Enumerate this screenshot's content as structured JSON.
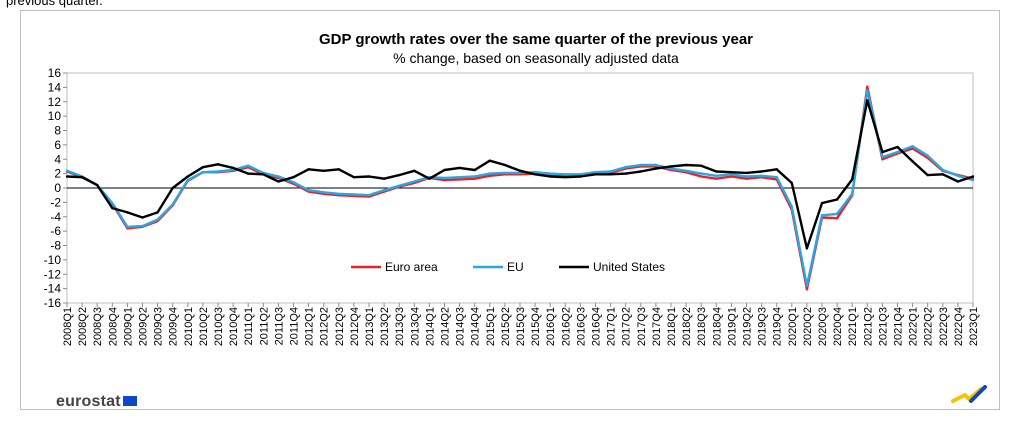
{
  "page": {
    "top_text": "previous quarter."
  },
  "branding": {
    "logo_text": "eurostat"
  },
  "colors": {
    "euro_area": "#e8212a",
    "eu": "#29a8e0",
    "united_states": "#000000",
    "flag": "#0e47cb",
    "mark_yellow": "#f5c400",
    "mark_blue": "#0e47cb"
  },
  "chart_data": {
    "type": "line",
    "title": "GDP growth rates over the same quarter of the previous year",
    "subtitle": "% change, based on seasonally adjusted data",
    "xlabel": "",
    "ylabel": "",
    "ylim": [
      -16,
      16
    ],
    "yticks": [
      16,
      14,
      12,
      10,
      8,
      6,
      4,
      2,
      0,
      -2,
      -4,
      -6,
      -8,
      -10,
      -12,
      -14,
      -16
    ],
    "grid": false,
    "legend_position": "bottom-center",
    "categories": [
      "2008Q1",
      "2008Q2",
      "2008Q3",
      "2008Q4",
      "2009Q1",
      "2009Q2",
      "2009Q3",
      "2009Q4",
      "2010Q1",
      "2010Q2",
      "2010Q3",
      "2010Q4",
      "2011Q1",
      "2011Q2",
      "2011Q3",
      "2011Q4",
      "2012Q1",
      "2012Q2",
      "2012Q3",
      "2012Q4",
      "2013Q1",
      "2013Q2",
      "2013Q3",
      "2013Q4",
      "2014Q1",
      "2014Q2",
      "2014Q3",
      "2014Q4",
      "2015Q1",
      "2015Q2",
      "2015Q3",
      "2015Q4",
      "2016Q1",
      "2016Q2",
      "2016Q3",
      "2016Q4",
      "2017Q1",
      "2017Q2",
      "2017Q3",
      "2017Q4",
      "2018Q1",
      "2018Q2",
      "2018Q3",
      "2018Q4",
      "2019Q1",
      "2019Q2",
      "2019Q3",
      "2019Q4",
      "2020Q1",
      "2020Q2",
      "2020Q3",
      "2020Q4",
      "2021Q1",
      "2021Q2",
      "2021Q3",
      "2021Q4",
      "2022Q1",
      "2022Q2",
      "2022Q3",
      "2022Q4",
      "2023Q1"
    ],
    "series": [
      {
        "name": "Euro area",
        "color": "#e8212a",
        "values": [
          2.3,
          1.5,
          0.4,
          -2.2,
          -5.6,
          -5.4,
          -4.6,
          -2.4,
          1.0,
          2.2,
          2.2,
          2.4,
          2.9,
          1.9,
          1.4,
          0.6,
          -0.5,
          -0.8,
          -1.0,
          -1.1,
          -1.2,
          -0.5,
          0.2,
          0.7,
          1.4,
          1.1,
          1.2,
          1.3,
          1.7,
          1.9,
          1.9,
          2.0,
          1.7,
          1.6,
          1.7,
          2.0,
          2.1,
          2.7,
          3.0,
          3.0,
          2.5,
          2.2,
          1.6,
          1.3,
          1.6,
          1.3,
          1.5,
          1.2,
          -3.0,
          -14.1,
          -4.1,
          -4.2,
          -1.0,
          14.1,
          4.0,
          4.8,
          5.5,
          4.2,
          2.4,
          1.8,
          1.3
        ]
      },
      {
        "name": "EU",
        "color": "#29a8e0",
        "values": [
          2.4,
          1.6,
          0.4,
          -2.1,
          -5.4,
          -5.3,
          -4.4,
          -2.3,
          1.1,
          2.2,
          2.3,
          2.5,
          3.1,
          2.1,
          1.6,
          0.8,
          -0.3,
          -0.6,
          -0.8,
          -0.9,
          -1.0,
          -0.3,
          0.3,
          0.9,
          1.5,
          1.4,
          1.5,
          1.6,
          2.0,
          2.1,
          2.1,
          2.2,
          2.0,
          1.9,
          1.9,
          2.2,
          2.3,
          2.9,
          3.2,
          3.2,
          2.7,
          2.4,
          2.0,
          1.7,
          1.9,
          1.6,
          1.7,
          1.5,
          -2.6,
          -13.6,
          -3.8,
          -3.6,
          -0.8,
          13.6,
          4.3,
          5.0,
          5.8,
          4.5,
          2.5,
          1.7,
          1.1
        ]
      },
      {
        "name": "United States",
        "color": "#000000",
        "values": [
          1.6,
          1.5,
          0.4,
          -2.8,
          -3.4,
          -4.1,
          -3.4,
          0.0,
          1.6,
          2.9,
          3.3,
          2.8,
          2.0,
          1.9,
          0.9,
          1.5,
          2.6,
          2.4,
          2.6,
          1.5,
          1.6,
          1.3,
          1.8,
          2.4,
          1.3,
          2.5,
          2.8,
          2.5,
          3.8,
          3.2,
          2.4,
          1.9,
          1.6,
          1.5,
          1.6,
          1.9,
          1.9,
          2.0,
          2.3,
          2.7,
          3.0,
          3.2,
          3.1,
          2.3,
          2.2,
          2.1,
          2.3,
          2.6,
          0.7,
          -8.4,
          -2.1,
          -1.6,
          1.2,
          12.2,
          5.0,
          5.7,
          3.7,
          1.8,
          1.9,
          0.9,
          1.6
        ]
      }
    ]
  }
}
